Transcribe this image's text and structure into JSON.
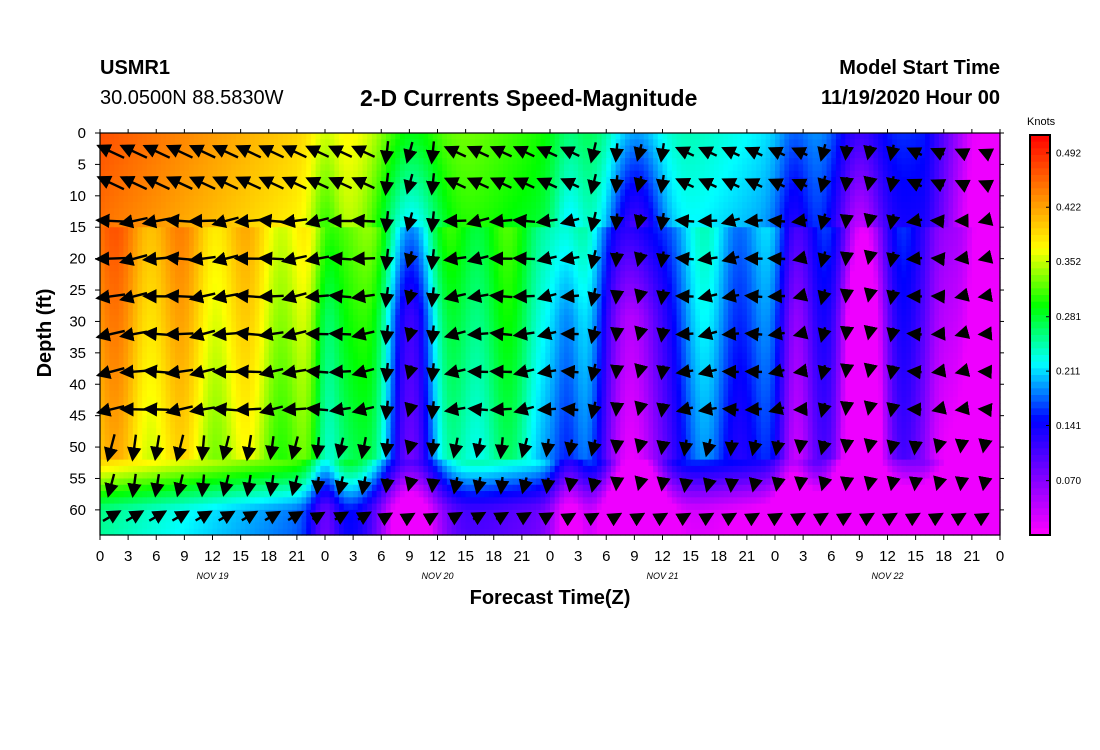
{
  "header": {
    "station": "USMR1",
    "coordinates": "30.0500N 88.5830W",
    "title": "2-D Currents Speed-Magnitude",
    "start_label": "Model Start Time",
    "start_value": "11/19/2020 Hour 00"
  },
  "chart_data": {
    "type": "heatmap",
    "title": "2-D Currents Speed-Magnitude",
    "xlabel": "Forecast Time(Z)",
    "ylabel": "Depth (ft)",
    "x_hours": [
      0,
      96
    ],
    "ylim": [
      0,
      64
    ],
    "x_tick_labels": [
      "0",
      "3",
      "6",
      "9",
      "12",
      "15",
      "18",
      "21",
      "0",
      "3",
      "6",
      "9",
      "12",
      "15",
      "18",
      "21",
      "0",
      "3",
      "6",
      "9",
      "12",
      "15",
      "18",
      "21",
      "0",
      "3",
      "6",
      "9",
      "12",
      "15",
      "18",
      "21",
      "0"
    ],
    "day_labels": [
      {
        "label": "NOV 19",
        "hour": 12
      },
      {
        "label": "NOV 20",
        "hour": 36
      },
      {
        "label": "NOV 21",
        "hour": 60
      },
      {
        "label": "NOV 22",
        "hour": 84
      }
    ],
    "y_ticks": [
      0,
      5,
      10,
      15,
      20,
      25,
      30,
      35,
      40,
      45,
      50,
      55,
      60
    ],
    "colorbar": {
      "unit": "Knots",
      "range": [
        0.0,
        0.515
      ],
      "ticks": [
        0.492,
        0.422,
        0.352,
        0.281,
        0.211,
        0.141,
        0.07
      ],
      "colors": [
        "#ff00ff",
        "#8000ff",
        "#0000ff",
        "#00ffff",
        "#00ff00",
        "#ffff00",
        "#ff8000",
        "#ff0000"
      ]
    },
    "speed_trend": "Highest speeds (~0.45-0.49 kt, red/orange) near surface on Nov 19-20; speeds decrease with depth and over time, lowest (~0.02-0.07 kt, magenta/purple) near 60-64 ft and on Nov 22 evening; periodic blue/cyan troughs near hours 33, 57 and 81.",
    "vector_direction": "Currents mostly toward the west/southwest; near-surface and upper-layer vectors point west, deeper vectors point south-southwest, bottom-layer vectors point northeast."
  }
}
